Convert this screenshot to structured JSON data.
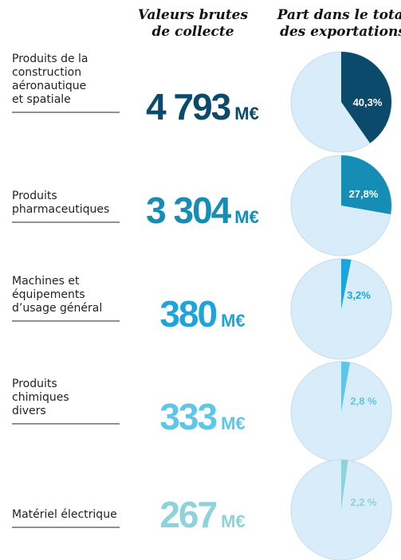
{
  "header": {
    "values_title": [
      "Valeurs brutes",
      "de collecte"
    ],
    "share_title": [
      "Part dans le total",
      "des exportations"
    ]
  },
  "rows": [
    {
      "label": [
        "Produits de la",
        "construction",
        "aéronautique",
        "et spatiale"
      ],
      "value": 4793,
      "value_label": "4 793",
      "unit": "M€",
      "share": 40.3,
      "share_label": "40,3%",
      "color": "#0c4a6c"
    },
    {
      "label": [
        "Produits",
        "pharmaceutiques"
      ],
      "value": 3304,
      "value_label": "3 304",
      "unit": "M€",
      "share": 27.8,
      "share_label": "27,8%",
      "color": "#168db5"
    },
    {
      "label": [
        "Machines et",
        "équipements",
        "d’usage général"
      ],
      "value": 380,
      "value_label": "380",
      "unit": "M€",
      "share": 3.2,
      "share_label": "3,2%",
      "color": "#1ea4dd"
    },
    {
      "label": [
        "Produits",
        "chimiques",
        "divers"
      ],
      "value": 333,
      "value_label": "333",
      "unit": "M€",
      "share": 2.8,
      "share_label": "2,8 %",
      "color": "#5ec6e8"
    },
    {
      "label": [
        "Matériel électrique"
      ],
      "value": 267,
      "value_label": "267",
      "unit": "M€",
      "share": 2.2,
      "share_label": "2,2 %",
      "color": "#8ed2da"
    }
  ]
}
